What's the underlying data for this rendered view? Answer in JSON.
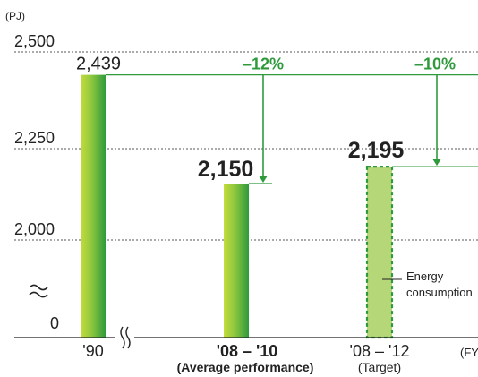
{
  "chart_data": {
    "type": "bar",
    "title": "",
    "ylabel": "(PJ)",
    "xlabel": "(FY)",
    "y_axis_break": true,
    "x_axis_break": true,
    "y_ticks": [
      {
        "value": 2500,
        "label": "2,500"
      },
      {
        "value": 2250,
        "label": "2,250"
      },
      {
        "value": 2000,
        "label": "2,000"
      },
      {
        "value": 0,
        "label": "0"
      }
    ],
    "categories": [
      {
        "key": "fy90",
        "label": "'90",
        "sub": ""
      },
      {
        "key": "fy08_10",
        "label": "'08 – '10",
        "sub": "(Average performance)"
      },
      {
        "key": "fy08_12",
        "label": "'08 – '12",
        "sub": "(Target)"
      }
    ],
    "values": [
      2439,
      2150,
      2195
    ],
    "data_labels": [
      "2,439",
      "2,150",
      "2,195"
    ],
    "reductions": [
      {
        "label": "–12%",
        "from": "fy90",
        "to": "fy08_10"
      },
      {
        "label": "–10%",
        "from": "fy90",
        "to": "fy08_12"
      }
    ],
    "legend_label_lines": [
      "Energy",
      "consumption"
    ],
    "grid": true,
    "colors": {
      "bar_light": "#c6dc3c",
      "bar_dark": "#2e9a3c",
      "target_fill": "#b5d777",
      "target_border": "#2e9a3c",
      "arrow": "#2e9a3c",
      "text": "#222222"
    }
  }
}
